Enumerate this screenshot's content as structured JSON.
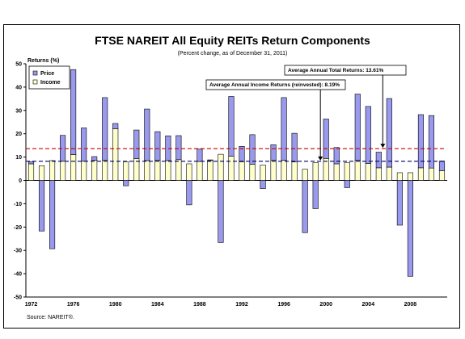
{
  "chart_data": {
    "type": "bar",
    "title": "FTSE NAREIT All Equity REITs Return Components",
    "subtitle": "(Percent change, as of December 31, 2011)",
    "ylabel": "Returns (%)",
    "ylim": [
      -50,
      50
    ],
    "yticks": [
      50,
      40,
      30,
      20,
      10,
      0,
      -10,
      -20,
      -30,
      -40,
      -50
    ],
    "xtick_labels": [
      "1972",
      "1976",
      "1980",
      "1984",
      "1988",
      "1992",
      "1996",
      "2000",
      "2004",
      "2008"
    ],
    "x": [
      1972,
      1973,
      1974,
      1975,
      1976,
      1977,
      1978,
      1979,
      1980,
      1981,
      1982,
      1983,
      1984,
      1985,
      1986,
      1987,
      1988,
      1989,
      1990,
      1991,
      1992,
      1993,
      1994,
      1995,
      1996,
      1997,
      1998,
      1999,
      2000,
      2001,
      2002,
      2003,
      2004,
      2005,
      2006,
      2007,
      2008,
      2009,
      2010,
      2011
    ],
    "series": [
      {
        "name": "Price",
        "color": "#9999ee",
        "values": [
          0.9,
          -21.7,
          -29.3,
          11.1,
          36.4,
          14.3,
          1.6,
          26.8,
          2.3,
          -2.3,
          12.3,
          22.1,
          12.2,
          10.6,
          10.3,
          -10.5,
          5.3,
          0.3,
          -26.6,
          25.6,
          6.6,
          12.7,
          -3.5,
          6.6,
          26.9,
          12.3,
          -22.4,
          -12.1,
          16.9,
          7.0,
          -3.1,
          28.4,
          24.4,
          6.7,
          29.4,
          -19.2,
          -41.1,
          22.8,
          22.5,
          4.2
        ]
      },
      {
        "name": "Income",
        "color": "#ffffcc",
        "values": [
          7.1,
          6.3,
          8.5,
          8.2,
          11.1,
          8.2,
          8.6,
          8.7,
          22.1,
          8.0,
          9.3,
          8.5,
          8.7,
          8.5,
          8.9,
          7.1,
          8.1,
          8.5,
          11.2,
          10.4,
          8.0,
          6.9,
          6.6,
          8.7,
          8.6,
          7.9,
          4.8,
          7.6,
          9.4,
          7.1,
          7.7,
          8.6,
          7.3,
          5.4,
          5.7,
          3.3,
          3.3,
          5.4,
          5.3,
          4.1
        ]
      }
    ],
    "reference_lines": [
      {
        "label": "Average Annual Total Returns: 13.61%",
        "value": 13.61,
        "color": "#cc0000"
      },
      {
        "label": "Average Annual Income Returns (reinvested): 8.19%",
        "value": 8.19,
        "color": "#000066"
      }
    ],
    "legend": {
      "position": "top-left",
      "entries": [
        "Price",
        "Income"
      ]
    },
    "grid": false,
    "source": "Source: NAREIT®."
  }
}
